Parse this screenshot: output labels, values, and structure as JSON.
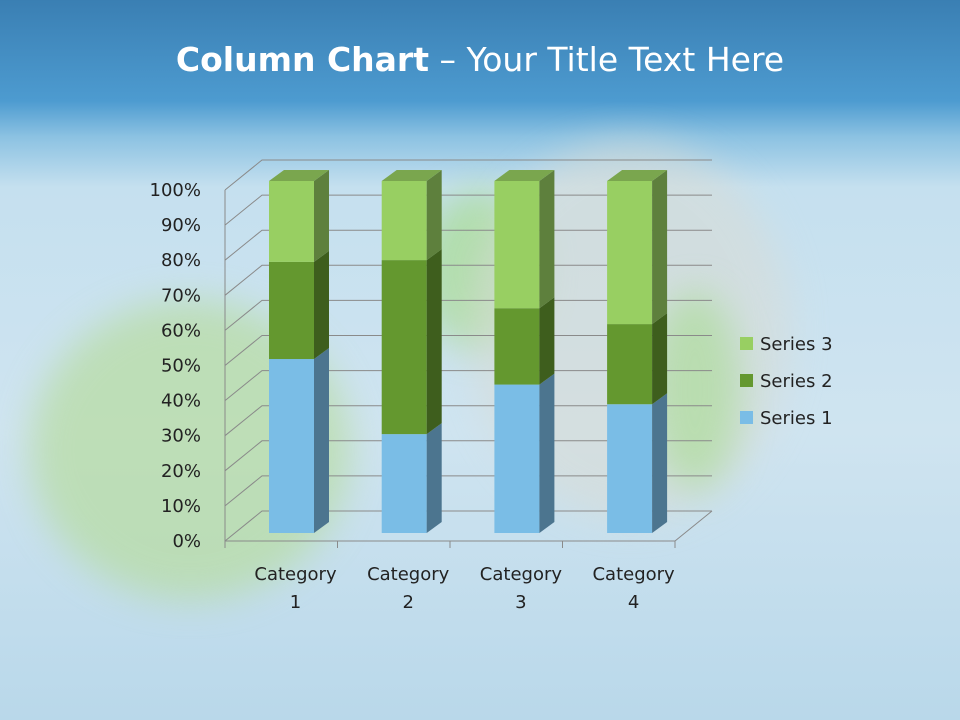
{
  "slide": {
    "title_bold": "Column Chart",
    "title_rest": " – Your Title Text Here"
  },
  "chart_data": {
    "type": "bar",
    "subtype": "3d-stacked-100-percent-column",
    "categories": [
      "Category 1",
      "Category 2",
      "Category 3",
      "Category 4"
    ],
    "category_lines": [
      [
        "Category",
        "1"
      ],
      [
        "Category",
        "2"
      ],
      [
        "Category",
        "3"
      ],
      [
        "Category",
        "4"
      ]
    ],
    "series": [
      {
        "name": "Series 1",
        "values": [
          4.3,
          2.5,
          3.5,
          4.5
        ],
        "color": "#7abde6"
      },
      {
        "name": "Series 2",
        "values": [
          2.4,
          4.4,
          1.8,
          2.8
        ],
        "color": "#64982f"
      },
      {
        "name": "Series 3",
        "values": [
          2,
          2,
          3,
          5
        ],
        "color": "#98cf62"
      }
    ],
    "yticks": [
      "0%",
      "10%",
      "20%",
      "30%",
      "40%",
      "50%",
      "60%",
      "70%",
      "80%",
      "90%",
      "100%"
    ],
    "ylim": [
      0,
      100
    ],
    "grid": true,
    "legend_position": "right"
  }
}
